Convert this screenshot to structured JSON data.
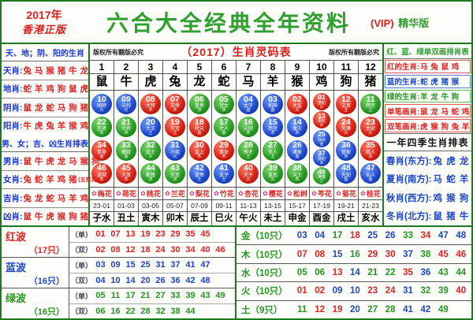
{
  "header": {
    "year": "2017年",
    "edition": "香港正版",
    "title": "六合大全经典全年资料",
    "vip": "(VIP)",
    "vip_edition": "精华版"
  },
  "left_panel": {
    "section1_title": "天、地；阴、阳的生肖",
    "section1_rows": [
      {
        "label": "天肖:",
        "value": "兔 马 猴 猪 牛 龙"
      },
      {
        "label": "地肖:",
        "value": "蛇 羊 鸡 狗 鼠 虎"
      },
      {
        "label": "阴肖:",
        "value": "鼠 龙 蛇 马 狗 猪"
      },
      {
        "label": "阳肖:",
        "value": "牛 虎 兔 羊 猴 鸡"
      }
    ],
    "section2_title": "男、女；吉、凶生肖排表",
    "section2_rows": [
      {
        "label": "男肖:",
        "value": "鼠 牛 虎 龙 马 猴 狗"
      },
      {
        "label": "女肖:",
        "value": "兔 蛇 羊 鸡 猪",
        "note": "(五宫肖)"
      },
      {
        "label": "吉肖:",
        "value": "兔 龙 蛇 马 羊 鸡"
      },
      {
        "label": "凶肖:",
        "value": "鼠 牛 虎 猴 狗 猪"
      }
    ]
  },
  "main_table": {
    "copyright_left": "版权所有翻版必究",
    "title": "（2017）生肖灵码表",
    "copyright_right": "版权所有翻版必究",
    "columns": [
      {
        "index": "1",
        "zodiac": "鼠",
        "flower": "梅花",
        "time": "23-01",
        "branch": "子水",
        "balls": [
          {
            "n": "10",
            "t": "国师",
            "e": "火",
            "c": "blue"
          },
          {
            "n": "22",
            "t": "圣贤",
            "e": "水",
            "c": "green"
          },
          {
            "n": "34",
            "t": "单身",
            "e": "金",
            "c": "red"
          },
          {
            "n": "46",
            "t": "盗贼",
            "e": "木",
            "c": "red"
          }
        ]
      },
      {
        "index": "2",
        "zodiac": "牛",
        "flower": "荷花",
        "time": "01-03",
        "branch": "丑土",
        "balls": [
          {
            "n": "09",
            "t": "元帅",
            "e": "火",
            "c": "blue"
          },
          {
            "n": "21",
            "t": "大将",
            "e": "水",
            "c": "green"
          },
          {
            "n": "33",
            "t": "横财",
            "e": "金",
            "c": "green"
          },
          {
            "n": "45",
            "t": "大贤",
            "e": "木",
            "c": "red"
          }
        ]
      },
      {
        "index": "3",
        "zodiac": "虎",
        "flower": "桃花",
        "time": "03-05",
        "branch": "寅木",
        "balls": [
          {
            "n": "08",
            "t": "大将",
            "e": "木",
            "c": "red"
          },
          {
            "n": "20",
            "t": "大王",
            "e": "土",
            "c": "blue"
          },
          {
            "n": "32",
            "t": "武士",
            "e": "火",
            "c": "green"
          },
          {
            "n": "44",
            "t": "都督",
            "e": "水",
            "c": "green"
          }
        ]
      },
      {
        "index": "4",
        "zodiac": "兔",
        "flower": "兰花",
        "time": "05-07",
        "branch": "卯木",
        "balls": [
          {
            "n": "07",
            "t": "玉帝",
            "e": "木",
            "c": "red"
          },
          {
            "n": "19",
            "t": "东宫",
            "e": "土",
            "c": "red"
          },
          {
            "n": "31",
            "t": "小姐",
            "e": "火",
            "c": "blue"
          },
          {
            "n": "43",
            "t": "东宫",
            "e": "水",
            "c": "green"
          }
        ]
      },
      {
        "index": "5",
        "zodiac": "龙",
        "flower": "梨花",
        "time": "07-09",
        "branch": "辰土",
        "balls": [
          {
            "n": "06",
            "t": "皇帝",
            "e": "水",
            "c": "green"
          },
          {
            "n": "18",
            "t": "状元",
            "e": "金",
            "c": "red"
          },
          {
            "n": "30",
            "t": "皇上",
            "e": "木",
            "c": "red"
          },
          {
            "n": "42",
            "t": "蓝帝",
            "e": "土",
            "c": "blue"
          }
        ]
      },
      {
        "index": "6",
        "zodiac": "蛇",
        "flower": "竹花",
        "time": "09-11",
        "branch": "巳火",
        "balls": [
          {
            "n": "05",
            "t": "宫女",
            "e": "水",
            "c": "green"
          },
          {
            "n": "17",
            "t": "才人",
            "e": "金",
            "c": "green"
          },
          {
            "n": "29",
            "t": "美女",
            "e": "木",
            "c": "red"
          },
          {
            "n": "41",
            "t": "太子",
            "e": "土",
            "c": "blue"
          }
        ]
      },
      {
        "index": "7",
        "zodiac": "马",
        "flower": "杏花",
        "time": "11-13",
        "branch": "午火",
        "balls": [
          {
            "n": "04",
            "t": "太子",
            "e": "金",
            "c": "blue"
          },
          {
            "n": "16",
            "t": "元帅",
            "e": "木",
            "c": "green"
          },
          {
            "n": "28",
            "t": "秀才",
            "e": "土",
            "c": "green"
          },
          {
            "n": "40",
            "t": "天子",
            "e": "火",
            "c": "red"
          }
        ]
      },
      {
        "index": "8",
        "zodiac": "羊",
        "flower": "樱花",
        "time": "13-15",
        "branch": "未土",
        "balls": [
          {
            "n": "03",
            "t": "相神",
            "e": "金",
            "c": "blue"
          },
          {
            "n": "15",
            "t": "西宫",
            "e": "木",
            "c": "blue"
          },
          {
            "n": "27",
            "t": "夫人",
            "e": "土",
            "c": "green"
          },
          {
            "n": "39",
            "t": "皇后",
            "e": "火",
            "c": "green"
          }
        ]
      },
      {
        "index": "9",
        "zodiac": "猴",
        "flower": "松树",
        "time": "15-17",
        "branch": "申金",
        "balls": [
          {
            "n": "02",
            "t": "太监",
            "e": "火",
            "c": "red"
          },
          {
            "n": "14",
            "t": "魔王",
            "e": "水",
            "c": "blue"
          },
          {
            "n": "26",
            "t": "诸侯",
            "e": "金",
            "c": "blue"
          },
          {
            "n": "38",
            "t": "义士",
            "e": "木",
            "c": "green"
          }
        ]
      },
      {
        "index": "10",
        "zodiac": "鸡",
        "flower": "芩花",
        "time": "17-19",
        "branch": "酉金",
        "balls": [
          {
            "n": "01",
            "t": "皇妃",
            "e": "火",
            "c": "red"
          },
          {
            "n": "13",
            "t": "贵妃",
            "e": "水",
            "c": "red"
          },
          {
            "n": "25",
            "t": "仙女",
            "e": "金",
            "c": "blue"
          },
          {
            "n": "37",
            "t": "情妃",
            "e": "木",
            "c": "blue"
          },
          {
            "n": "49",
            "t": "神童",
            "e": "土",
            "c": "green"
          }
        ]
      },
      {
        "index": "11",
        "zodiac": "狗",
        "flower": "菊花",
        "time": "19-21",
        "branch": "戌土",
        "balls": [
          {
            "n": "12",
            "t": "文官",
            "e": "土",
            "c": "red"
          },
          {
            "n": "24",
            "t": "先锋",
            "e": "火",
            "c": "red"
          },
          {
            "n": "36",
            "t": "管家",
            "e": "水",
            "c": "blue"
          },
          {
            "n": "48",
            "t": "先知",
            "e": "金",
            "c": "blue"
          }
        ]
      },
      {
        "index": "12",
        "zodiac": "猪",
        "flower": "桂花",
        "time": "21-23",
        "branch": "亥水",
        "balls": [
          {
            "n": "11",
            "t": "西宫",
            "e": "土",
            "c": "green"
          },
          {
            "n": "23",
            "t": "太尉",
            "e": "火",
            "c": "red"
          },
          {
            "n": "35",
            "t": "商人",
            "e": "水",
            "c": "red"
          },
          {
            "n": "47",
            "t": "仙人",
            "e": "金",
            "c": "blue"
          }
        ]
      }
    ]
  },
  "right_panel": {
    "section1_title": "红、蓝、绿单双画排肖表",
    "color_rows": [
      {
        "label": "红的生肖:",
        "value": "马 兔 鼠 鸡",
        "color": "red"
      },
      {
        "label": "蓝的生肖:",
        "value": "蛇 虎 猪 猴",
        "color": "blue"
      },
      {
        "label": "绿的生肖:",
        "value": "羊 龙 牛 狗",
        "color": "green"
      },
      {
        "label": "单笔画肖:",
        "value": "鼠 龙 马 蛇 鸡 猪",
        "color": "red"
      },
      {
        "label": "双笔画肖:",
        "value": "虎 猴 狗 兔 羊 牛",
        "color": "red"
      }
    ],
    "section2_title": "一年四季生肖排表",
    "season_rows": [
      {
        "label": "春肖(东方):",
        "value": "兔 虎 龙"
      },
      {
        "label": "夏肖(南方):",
        "value": "马 蛇 羊"
      },
      {
        "label": "秋肖(西方):",
        "value": "鸡 猴 狗"
      },
      {
        "label": "冬肖(北方):",
        "value": "鼠 猪 牛"
      }
    ]
  },
  "waves": {
    "rows": [
      {
        "name": "红波",
        "count": "（17只）",
        "color": "red",
        "odd_label": "（单）",
        "odd": [
          "01",
          "07",
          "13",
          "19",
          "23",
          "29",
          "35",
          "45"
        ],
        "even_label": "（双）",
        "even": [
          "02",
          "08",
          "12",
          "18",
          "24",
          "30",
          "34",
          "40",
          "46"
        ]
      },
      {
        "name": "蓝波",
        "count": "（16只）",
        "color": "blue",
        "odd_label": "（单）",
        "odd": [
          "03",
          "09",
          "15",
          "25",
          "31",
          "37",
          "41",
          "47"
        ],
        "even_label": "（双）",
        "even": [
          "04",
          "10",
          "14",
          "20",
          "26",
          "36",
          "42",
          "48"
        ]
      },
      {
        "name": "绿波",
        "count": "（16只）",
        "color": "green",
        "odd_label": "（单）",
        "odd": [
          "05",
          "11",
          "17",
          "21",
          "27",
          "33",
          "39",
          "43",
          "49"
        ],
        "even_label": "（双）",
        "even": [
          "06",
          "16",
          "22",
          "28",
          "32",
          "38",
          "44"
        ]
      }
    ]
  },
  "elements": {
    "rows": [
      {
        "label": "金（10只）",
        "nums": [
          "03",
          "04",
          "17",
          "18",
          "25",
          "26",
          "33",
          "34",
          "47",
          "48"
        ]
      },
      {
        "label": "木（10只）",
        "nums": [
          "07",
          "08",
          "15",
          "16",
          "29",
          "30",
          "37",
          "38",
          "45",
          "46"
        ]
      },
      {
        "label": "水（10只）",
        "nums": [
          "05",
          "06",
          "13",
          "14",
          "21",
          "22",
          "35",
          "36",
          "43",
          "44"
        ]
      },
      {
        "label": "火（10只）",
        "nums": [
          "01",
          "02",
          "09",
          "10",
          "23",
          "24",
          "31",
          "32",
          "39",
          "40"
        ]
      },
      {
        "label": "土（9只）",
        "nums": [
          "11",
          "12",
          "19",
          "20",
          "27",
          "28",
          "41",
          "42",
          "49"
        ]
      }
    ]
  },
  "colors": {
    "red": "#e02222",
    "blue": "#1c46c8",
    "green": "#23961f",
    "title_green": "#2fa02f",
    "label_blue": "#1635d9"
  }
}
